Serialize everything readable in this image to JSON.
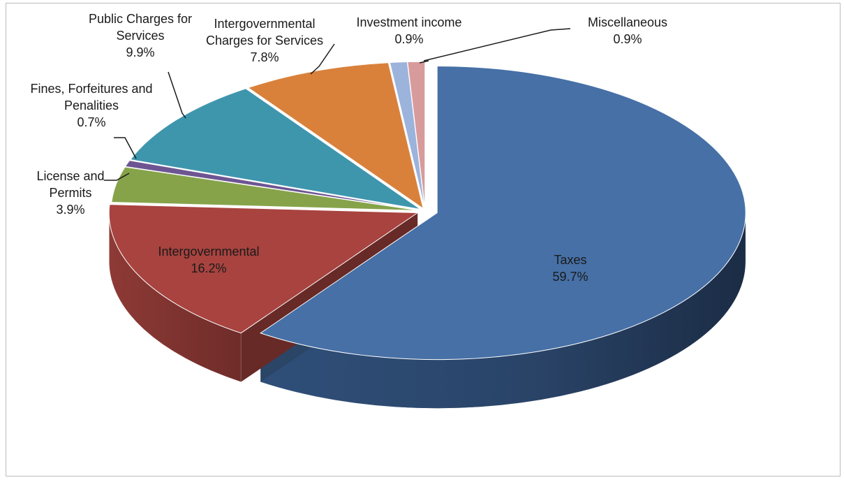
{
  "chart_data": {
    "type": "pie",
    "title": "",
    "slices": [
      {
        "label_lines": [
          "Taxes"
        ],
        "percent_text": "59.7%",
        "value": 59.7,
        "color": "#4670a6"
      },
      {
        "label_lines": [
          "Intergovernmental"
        ],
        "percent_text": "16.2%",
        "value": 16.2,
        "color": "#a8433f"
      },
      {
        "label_lines": [
          "License and",
          "Permits"
        ],
        "percent_text": "3.9%",
        "value": 3.9,
        "color": "#86a34a"
      },
      {
        "label_lines": [
          "Fines, Forfeitures and",
          "Penalities"
        ],
        "percent_text": "0.7%",
        "value": 0.7,
        "color": "#6d5592"
      },
      {
        "label_lines": [
          "Public Charges for",
          "Services"
        ],
        "percent_text": "9.9%",
        "value": 9.9,
        "color": "#3e96ad"
      },
      {
        "label_lines": [
          "Intergovernmental",
          "Charges for Services"
        ],
        "percent_text": "7.8%",
        "value": 7.8,
        "color": "#d9813b"
      },
      {
        "label_lines": [
          "Investment income"
        ],
        "percent_text": "0.9%",
        "value": 0.9,
        "color": "#9cb3dc"
      },
      {
        "label_lines": [
          "Miscellaneous"
        ],
        "percent_text": "0.9%",
        "value": 0.9,
        "color": "#d89b9b"
      }
    ]
  }
}
